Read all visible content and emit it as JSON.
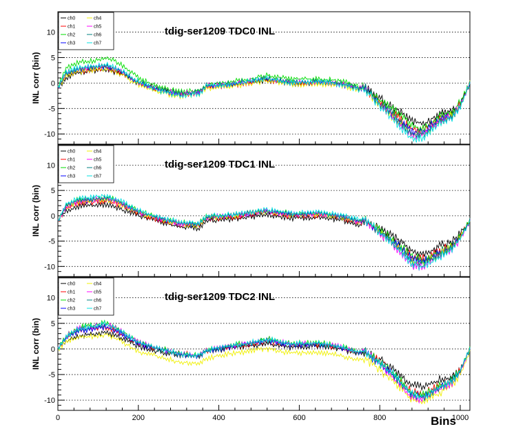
{
  "chart_data": [
    {
      "type": "line",
      "title": "tdig-ser1209 TDC0 INL",
      "ylabel": "INL corr (bin)",
      "xlabel": "",
      "xlim": [
        0,
        1024
      ],
      "ylim": [
        -12,
        14
      ],
      "x_ticks": [
        "0",
        "200",
        "400",
        "600",
        "800",
        "1000"
      ],
      "y_ticks": [
        "-10",
        "-5",
        "0",
        "5",
        "10"
      ],
      "grid": "horizontal dotted",
      "legend_position": "top-left",
      "x": [
        0,
        20,
        50,
        100,
        120,
        150,
        200,
        250,
        300,
        350,
        370,
        420,
        470,
        520,
        580,
        650,
        700,
        750,
        760,
        800,
        850,
        880,
        910,
        950,
        980,
        1000,
        1024
      ],
      "series": [
        {
          "name": "ch0",
          "color": "#000000",
          "values": [
            -1,
            1,
            2,
            2.5,
            2.5,
            2,
            0,
            -1,
            -2,
            -1.8,
            -0.5,
            -0.5,
            0,
            0.5,
            -0.2,
            0,
            -0.3,
            -1,
            -0.5,
            -3,
            -5.5,
            -7.5,
            -8,
            -6,
            -5.5,
            -4,
            0
          ]
        },
        {
          "name": "ch1",
          "color": "#ff0000",
          "values": [
            -1,
            1.5,
            2.3,
            2.8,
            3,
            2.3,
            0,
            -1.5,
            -2.3,
            -2,
            -0.8,
            -0.6,
            0,
            0.6,
            -0.1,
            0.1,
            -0.3,
            -1.2,
            -0.8,
            -4,
            -7,
            -9,
            -9,
            -7,
            -6.5,
            -4,
            0
          ]
        },
        {
          "name": "ch2",
          "color": "#00dd00",
          "values": [
            -1,
            3,
            4,
            4.5,
            5,
            4,
            1,
            -0.8,
            -1.7,
            -1.5,
            -0.2,
            0.1,
            0.8,
            1.5,
            0.8,
            0.8,
            0.5,
            -0.7,
            -0.5,
            -3.5,
            -6,
            -8.5,
            -8.8,
            -6.5,
            -5.5,
            -3.8,
            0
          ]
        },
        {
          "name": "ch3",
          "color": "#0000ff",
          "values": [
            -1,
            1.8,
            2.6,
            3,
            3.2,
            2.5,
            0,
            -1.5,
            -2.3,
            -2,
            -0.6,
            -0.4,
            0.2,
            0.8,
            0,
            0.2,
            -0.2,
            -1.2,
            -0.8,
            -4,
            -7.5,
            -9.5,
            -9.5,
            -7,
            -6.5,
            -4.5,
            0
          ]
        },
        {
          "name": "ch4",
          "color": "#f0f000",
          "values": [
            -1,
            1.5,
            2.2,
            2.6,
            2.8,
            2,
            -0.3,
            -1.8,
            -2.6,
            -2.2,
            -1,
            -0.8,
            -0.2,
            0.4,
            -0.4,
            -0.2,
            -0.5,
            -1.4,
            -1,
            -4.5,
            -8,
            -10,
            -10,
            -7.5,
            -6.5,
            -4.5,
            0
          ]
        },
        {
          "name": "ch5",
          "color": "#ff00ff",
          "values": [
            -1,
            2,
            2.8,
            3.2,
            3.4,
            2.6,
            0.2,
            -1.3,
            -2.1,
            -1.8,
            -0.5,
            -0.3,
            0.3,
            0.9,
            0.1,
            0.3,
            -0.1,
            -1,
            -0.7,
            -4.2,
            -8,
            -10.5,
            -10,
            -7.5,
            -6.5,
            -4.5,
            0
          ]
        },
        {
          "name": "ch6",
          "color": "#008080",
          "values": [
            -1,
            2,
            2.8,
            3.2,
            3.4,
            2.7,
            0.3,
            -1.2,
            -2,
            -1.8,
            -0.4,
            -0.2,
            0.4,
            1,
            0.2,
            0.4,
            0,
            -1,
            -0.6,
            -4,
            -7.5,
            -10,
            -10,
            -7.5,
            -6.5,
            -4.5,
            0
          ]
        },
        {
          "name": "ch7",
          "color": "#00e0e0",
          "values": [
            -1,
            2.2,
            3,
            3.4,
            3.6,
            2.8,
            0.3,
            -1.5,
            -2.5,
            -2.2,
            -0.6,
            -0.4,
            0.3,
            1,
            0,
            0.3,
            -0.3,
            -1.3,
            -0.9,
            -4.6,
            -8.5,
            -11,
            -10.8,
            -8,
            -7,
            -4.8,
            0
          ]
        }
      ]
    },
    {
      "type": "line",
      "title": "tdig-ser1209 TDC1 INL",
      "ylabel": "INL corr (bin)",
      "xlabel": "",
      "xlim": [
        0,
        1024
      ],
      "ylim": [
        -12,
        14
      ],
      "x_ticks": [
        "0",
        "200",
        "400",
        "600",
        "800",
        "1000"
      ],
      "y_ticks": [
        "-10",
        "-5",
        "0",
        "5",
        "10"
      ],
      "grid": "horizontal dotted",
      "legend_position": "top-left",
      "x": [
        0,
        20,
        50,
        100,
        120,
        150,
        200,
        250,
        300,
        350,
        370,
        420,
        470,
        520,
        580,
        650,
        700,
        750,
        760,
        800,
        850,
        880,
        910,
        950,
        980,
        1000,
        1024
      ],
      "series": [
        {
          "name": "ch0",
          "color": "#000000",
          "values": [
            -1,
            1,
            1.8,
            2,
            2.2,
            1.5,
            0,
            -1.2,
            -2.2,
            -2.5,
            -1,
            -0.8,
            -0.3,
            0.2,
            -0.5,
            -0.3,
            -0.8,
            -1.8,
            -1.2,
            -2.5,
            -5,
            -7,
            -7.5,
            -6,
            -5,
            -3.5,
            -1
          ]
        },
        {
          "name": "ch1",
          "color": "#ff0000",
          "values": [
            -1,
            1.5,
            2.5,
            2.8,
            3,
            2.2,
            0.4,
            -0.8,
            -1.8,
            -2,
            -0.6,
            -0.4,
            0.1,
            0.6,
            -0.1,
            0.1,
            -0.4,
            -1.5,
            -1,
            -3,
            -6,
            -8,
            -8.5,
            -6.8,
            -5.8,
            -4,
            -1
          ]
        },
        {
          "name": "ch2",
          "color": "#00dd00",
          "values": [
            -1,
            2,
            3.2,
            3.5,
            3.8,
            3,
            1,
            -0.3,
            -1.2,
            -1.5,
            -0.1,
            0.1,
            0.6,
            1.1,
            0.5,
            0.6,
            0.1,
            -1,
            -0.6,
            -2.8,
            -5.8,
            -8,
            -8.6,
            -7,
            -6,
            -4,
            -0.8
          ]
        },
        {
          "name": "ch3",
          "color": "#0000ff",
          "values": [
            -1,
            1.8,
            2.8,
            3.2,
            3.4,
            2.6,
            0.7,
            -0.5,
            -1.5,
            -1.8,
            -0.3,
            -0.1,
            0.4,
            0.9,
            0.2,
            0.4,
            -0.1,
            -1.2,
            -0.8,
            -3,
            -6.2,
            -8.5,
            -9,
            -7.2,
            -6,
            -4.2,
            -1
          ]
        },
        {
          "name": "ch4",
          "color": "#f0f000",
          "values": [
            -1,
            1.7,
            2.7,
            3.1,
            3.3,
            2.5,
            0.6,
            -0.6,
            -1.6,
            -1.9,
            -0.4,
            -0.2,
            0.3,
            0.8,
            0.1,
            0.3,
            -0.2,
            -1.3,
            -0.9,
            -3.2,
            -6.5,
            -9,
            -9.5,
            -7.5,
            -6.2,
            -4.3,
            -1
          ]
        },
        {
          "name": "ch5",
          "color": "#ff00ff",
          "values": [
            -1,
            1.8,
            2.9,
            3.3,
            3.5,
            2.7,
            0.7,
            -0.5,
            -1.5,
            -1.8,
            -0.3,
            -0.1,
            0.4,
            0.9,
            0.2,
            0.4,
            -0.1,
            -1.2,
            -0.8,
            -3.5,
            -7,
            -9.8,
            -10,
            -7.8,
            -6.5,
            -4.5,
            -1
          ]
        },
        {
          "name": "ch6",
          "color": "#008080",
          "values": [
            -1,
            1.9,
            3,
            3.4,
            3.6,
            2.8,
            0.8,
            -0.4,
            -1.4,
            -1.7,
            -0.2,
            0,
            0.5,
            1,
            0.3,
            0.5,
            0,
            -1.1,
            -0.7,
            -3.2,
            -6.5,
            -9,
            -9.5,
            -7.5,
            -6.2,
            -4.3,
            -1
          ]
        },
        {
          "name": "ch7",
          "color": "#00e0e0",
          "values": [
            -1,
            2.2,
            3.4,
            3.8,
            4,
            3.2,
            1,
            -0.2,
            -1.2,
            -1.5,
            0,
            0.2,
            0.7,
            1.2,
            0.5,
            0.7,
            0.2,
            -0.9,
            -0.5,
            -3.4,
            -6.8,
            -9.5,
            -10.2,
            -8,
            -6.6,
            -4.5,
            -1
          ]
        }
      ]
    },
    {
      "type": "line",
      "title": "tdig-ser1209 TDC2 INL",
      "ylabel": "INL corr (bin)",
      "xlabel": "Bins",
      "xlim": [
        0,
        1024
      ],
      "ylim": [
        -12,
        14
      ],
      "x_ticks": [
        "0",
        "200",
        "400",
        "600",
        "800",
        "1000"
      ],
      "y_ticks": [
        "-10",
        "-5",
        "0",
        "5",
        "10"
      ],
      "grid": "horizontal dotted",
      "legend_position": "top-left",
      "x": [
        0,
        20,
        50,
        100,
        120,
        150,
        200,
        250,
        300,
        350,
        370,
        420,
        470,
        520,
        580,
        650,
        700,
        750,
        760,
        800,
        850,
        880,
        910,
        950,
        980,
        1000,
        1024
      ],
      "series": [
        {
          "name": "ch0",
          "color": "#000000",
          "values": [
            0,
            1.5,
            2.5,
            3,
            3.2,
            2.5,
            0.5,
            -0.5,
            -1.2,
            -1.5,
            -0.5,
            0,
            0.5,
            1,
            0.3,
            0.5,
            0,
            -1,
            -0.5,
            -2,
            -5,
            -7,
            -7.5,
            -6,
            -5.5,
            -4,
            0
          ]
        },
        {
          "name": "ch1",
          "color": "#ff0000",
          "values": [
            0,
            2,
            3.5,
            4,
            4.2,
            3.2,
            1,
            0,
            -0.8,
            -1.2,
            -0.3,
            0.3,
            0.8,
            1.5,
            0.8,
            0.8,
            0.3,
            -0.8,
            -0.3,
            -2.5,
            -6,
            -8.2,
            -8.8,
            -7,
            -6,
            -4.2,
            0
          ]
        },
        {
          "name": "ch2",
          "color": "#00dd00",
          "values": [
            0,
            2.5,
            4.2,
            4.8,
            5.2,
            4,
            1.5,
            0.2,
            -0.8,
            -1.2,
            -0.1,
            0.6,
            1.2,
            2,
            1.2,
            1.2,
            0.6,
            -0.6,
            -0.2,
            -2.5,
            -6,
            -8.5,
            -9,
            -7.2,
            -6,
            -4.2,
            0
          ]
        },
        {
          "name": "ch3",
          "color": "#0000ff",
          "values": [
            0,
            2,
            3.5,
            4,
            4.3,
            3.3,
            1,
            0,
            -1,
            -1.5,
            -0.4,
            0.3,
            0.9,
            1.6,
            0.8,
            0.9,
            0.3,
            -0.8,
            -0.4,
            -2.8,
            -6.5,
            -9,
            -9.5,
            -7.5,
            -6.5,
            -4.5,
            0
          ]
        },
        {
          "name": "ch4",
          "color": "#f0f000",
          "values": [
            0,
            1.2,
            2.2,
            2.6,
            2.8,
            1.8,
            -0.5,
            -1.5,
            -2.5,
            -2.8,
            -1.8,
            -1,
            -0.5,
            0,
            -0.8,
            -0.6,
            -1.2,
            -2.2,
            -1.8,
            -4,
            -7.5,
            -10,
            -10.5,
            -8.5,
            -7,
            -5,
            -0.5
          ]
        },
        {
          "name": "ch5",
          "color": "#ff00ff",
          "values": [
            0,
            2.4,
            4,
            4.6,
            5,
            3.8,
            1.3,
            0.1,
            -0.9,
            -1.3,
            -0.2,
            0.5,
            1.1,
            1.8,
            1,
            1.1,
            0.5,
            -0.7,
            -0.3,
            -3,
            -7,
            -9.5,
            -9.8,
            -7.8,
            -6.6,
            -4.5,
            0
          ]
        },
        {
          "name": "ch6",
          "color": "#008080",
          "values": [
            0,
            2.2,
            3.8,
            4.4,
            4.7,
            3.6,
            1.2,
            0,
            -1,
            -1.4,
            -0.3,
            0.4,
            1,
            1.7,
            0.9,
            1,
            0.4,
            -0.7,
            -0.3,
            -2.8,
            -6.5,
            -9,
            -9.5,
            -7.5,
            -6.4,
            -4.4,
            0
          ]
        },
        {
          "name": "ch7",
          "color": "#00e0e0",
          "values": [
            0,
            2.4,
            4,
            4.6,
            5,
            3.8,
            1.3,
            0.1,
            -0.9,
            -1.3,
            -0.2,
            0.5,
            1.1,
            1.9,
            1.1,
            1.1,
            0.5,
            -0.7,
            -0.3,
            -2.6,
            -6.2,
            -8.8,
            -9.3,
            -7.4,
            -6.3,
            -4.3,
            0
          ]
        }
      ]
    }
  ]
}
